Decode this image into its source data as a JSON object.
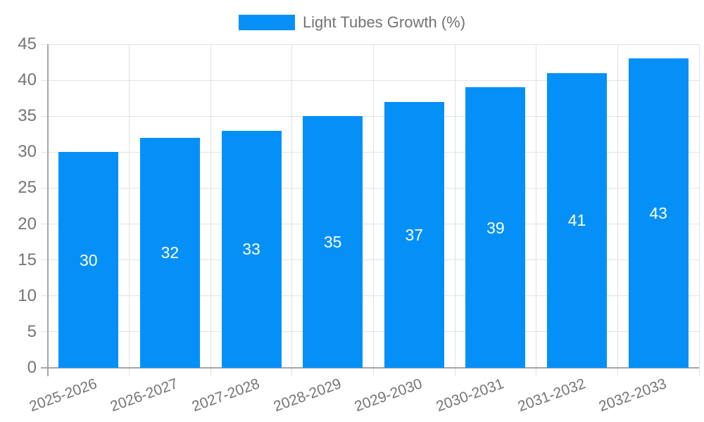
{
  "legend": {
    "label": "Light Tubes Growth (%)"
  },
  "chart_data": {
    "type": "bar",
    "title": "",
    "categories": [
      "2025-2026",
      "2026-2027",
      "2027-2028",
      "2028-2029",
      "2029-2030",
      "2030-2031",
      "2031-2032",
      "2032-2033"
    ],
    "series": [
      {
        "name": "Light Tubes Growth (%)",
        "values": [
          30,
          32,
          33,
          35,
          37,
          39,
          41,
          43
        ]
      }
    ],
    "value_labels": [
      30,
      32,
      33,
      35,
      37,
      39,
      41,
      43
    ],
    "value_label_position": "inside-center",
    "xlabel": "",
    "ylabel": "",
    "ylim": [
      0,
      45
    ],
    "ytick_step": 5,
    "y_ticks": [
      0,
      5,
      10,
      15,
      20,
      25,
      30,
      35,
      40,
      45
    ],
    "grid": true,
    "legend_position": "top-center",
    "x_label_rotation_deg": -20,
    "colors": {
      "bar": "#0590f8",
      "tick_text": "#757575",
      "legend_text": "#737373",
      "gridline": "#e2e2e2",
      "axis_line": "#a6a6a6",
      "value_label": "#ffffff",
      "background": "#ffffff"
    }
  }
}
